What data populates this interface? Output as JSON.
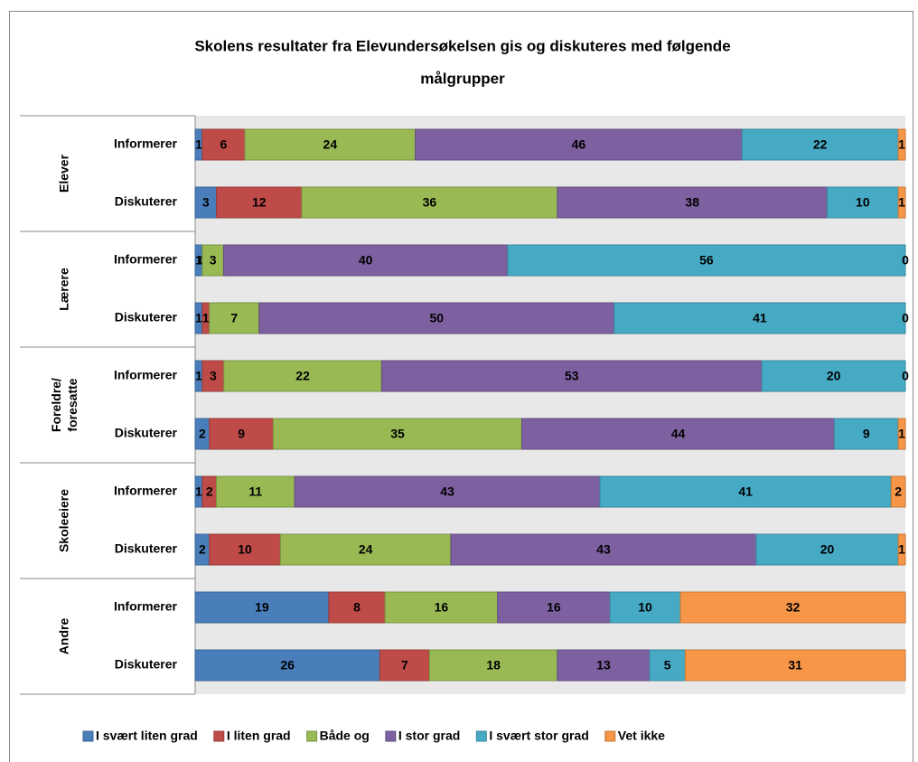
{
  "chart_data": {
    "type": "stacked_barh_100",
    "title": [
      "Skolens resultater fra Elevundersøkelsen gis og diskuteres med følgende",
      "målgrupper"
    ],
    "groups": [
      "Elever",
      "Lærere",
      "Foreldre/ foresatte",
      "Skoleeiere",
      "Andre"
    ],
    "categories": [
      "Informerer",
      "Diskuterer",
      "Informerer",
      "Diskuterer",
      "Informerer",
      "Diskuterer",
      "Informerer",
      "Diskuterer",
      "Informerer",
      "Diskuterer"
    ],
    "series": [
      {
        "name": "I svært liten grad",
        "color": "#4a7ebb",
        "values": [
          1,
          3,
          1,
          1,
          1,
          2,
          1,
          2,
          19,
          26
        ]
      },
      {
        "name": "I liten grad",
        "color": "#be4b48",
        "values": [
          6,
          12,
          0,
          1,
          3,
          9,
          2,
          10,
          8,
          7
        ]
      },
      {
        "name": "Både og",
        "color": "#98b954",
        "values": [
          24,
          36,
          3,
          7,
          22,
          35,
          11,
          24,
          16,
          18
        ]
      },
      {
        "name": "I stor grad",
        "color": "#7d60a0",
        "values": [
          46,
          38,
          40,
          50,
          53,
          44,
          43,
          43,
          16,
          13
        ]
      },
      {
        "name": "I svært stor grad",
        "color": "#46aac5",
        "values": [
          22,
          10,
          56,
          41,
          20,
          9,
          41,
          20,
          10,
          5
        ]
      },
      {
        "name": "Vet ikke",
        "color": "#f79646",
        "values": [
          1,
          1,
          0,
          0,
          0,
          1,
          2,
          1,
          32,
          31
        ]
      }
    ]
  }
}
